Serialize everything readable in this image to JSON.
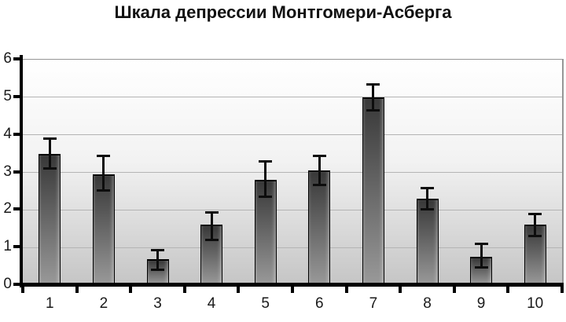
{
  "chart_data": {
    "type": "bar",
    "title": "Шкала депрессии Монтгомери-Асберга",
    "categories": [
      "1",
      "2",
      "3",
      "4",
      "5",
      "6",
      "7",
      "8",
      "9",
      "10"
    ],
    "values": [
      3.5,
      2.95,
      0.7,
      1.6,
      2.8,
      3.05,
      5.0,
      2.3,
      0.75,
      1.6
    ],
    "error_low": [
      3.1,
      2.5,
      0.4,
      1.2,
      2.35,
      2.65,
      4.65,
      2.0,
      0.45,
      1.3
    ],
    "error_high": [
      3.9,
      3.45,
      0.95,
      1.95,
      3.3,
      3.45,
      5.35,
      2.6,
      1.1,
      1.9
    ],
    "xlabel": "",
    "ylabel": "",
    "ylim": [
      0,
      6
    ],
    "yticks": [
      0,
      1,
      2,
      3,
      4,
      5,
      6
    ],
    "grid": true,
    "legend": false,
    "error_bars": true,
    "colors": {
      "bar_gradient_top": "#383838",
      "bar_gradient_bottom": "#999999",
      "bar_border": "#000000",
      "plot_bg_top": "#ffffff",
      "plot_bg_bottom": "#c5c5c5",
      "gridline": "#b4b4b4",
      "plot_border": "#969696",
      "axis": "#000000",
      "error_bar": "#0d0d0d",
      "title_text": "#111111",
      "tick_text": "#1a1a1a"
    }
  }
}
